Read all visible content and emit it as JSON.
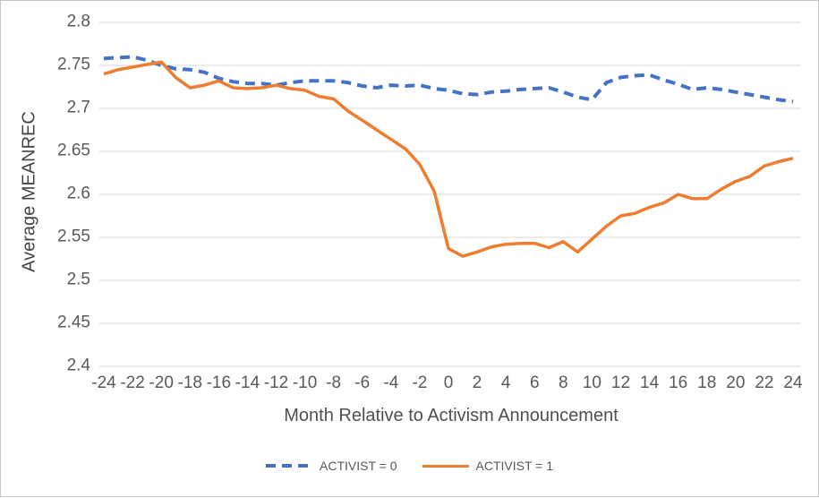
{
  "window": {
    "background": "#ffffff",
    "border_color": "#c6c6c6"
  },
  "chart_data": {
    "type": "line",
    "title": "",
    "xlabel": "Month Relative to Activism Announcement",
    "ylabel": "Average MEANREC",
    "xlim": [
      -24,
      24
    ],
    "ylim": [
      2.4,
      2.8
    ],
    "grid": "horizontal",
    "legend_position": "bottom",
    "gridline_color": "#d9d9d9",
    "tick_color": "#595959",
    "x": [
      -24,
      -23,
      -22,
      -21,
      -20,
      -19,
      -18,
      -17,
      -16,
      -15,
      -14,
      -13,
      -12,
      -11,
      -10,
      -9,
      -8,
      -7,
      -6,
      -5,
      -4,
      -3,
      -2,
      -1,
      0,
      1,
      2,
      3,
      4,
      5,
      6,
      7,
      8,
      9,
      10,
      11,
      12,
      13,
      14,
      15,
      16,
      17,
      18,
      19,
      20,
      21,
      22,
      23,
      24
    ],
    "x_ticks": [
      "-24",
      "-22",
      "-20",
      "-18",
      "-16",
      "-14",
      "-12",
      "-10",
      "-8",
      "-6",
      "-4",
      "-2",
      "0",
      "2",
      "4",
      "6",
      "8",
      "10",
      "12",
      "14",
      "16",
      "18",
      "20",
      "22",
      "24"
    ],
    "y_ticks": [
      "2.4",
      "2.45",
      "2.5",
      "2.55",
      "2.6",
      "2.65",
      "2.7",
      "2.75",
      "2.8"
    ],
    "series": [
      {
        "name": "ACTIVIST = 0",
        "color": "#4472C4",
        "style": "dashed",
        "values": [
          2.758,
          2.759,
          2.76,
          2.756,
          2.75,
          2.746,
          2.745,
          2.742,
          2.735,
          2.731,
          2.729,
          2.729,
          2.727,
          2.73,
          2.732,
          2.732,
          2.732,
          2.73,
          2.726,
          2.724,
          2.727,
          2.726,
          2.727,
          2.723,
          2.721,
          2.717,
          2.716,
          2.719,
          2.72,
          2.722,
          2.723,
          2.724,
          2.719,
          2.713,
          2.71,
          2.73,
          2.736,
          2.738,
          2.739,
          2.733,
          2.728,
          2.722,
          2.724,
          2.722,
          2.719,
          2.716,
          2.713,
          2.71,
          2.708
        ]
      },
      {
        "name": "ACTIVIST = 1",
        "color": "#ED7D31",
        "style": "solid",
        "values": [
          2.74,
          2.745,
          2.748,
          2.751,
          2.754,
          2.736,
          2.724,
          2.727,
          2.732,
          2.724,
          2.723,
          2.724,
          2.727,
          2.723,
          2.721,
          2.714,
          2.711,
          2.697,
          2.686,
          2.675,
          2.664,
          2.653,
          2.635,
          2.604,
          2.537,
          2.528,
          2.533,
          2.539,
          2.542,
          2.543,
          2.543,
          2.538,
          2.545,
          2.533,
          2.548,
          2.563,
          2.575,
          2.578,
          2.585,
          2.59,
          2.6,
          2.595,
          2.595,
          2.606,
          2.615,
          2.621,
          2.633,
          2.638,
          2.642
        ]
      }
    ]
  }
}
